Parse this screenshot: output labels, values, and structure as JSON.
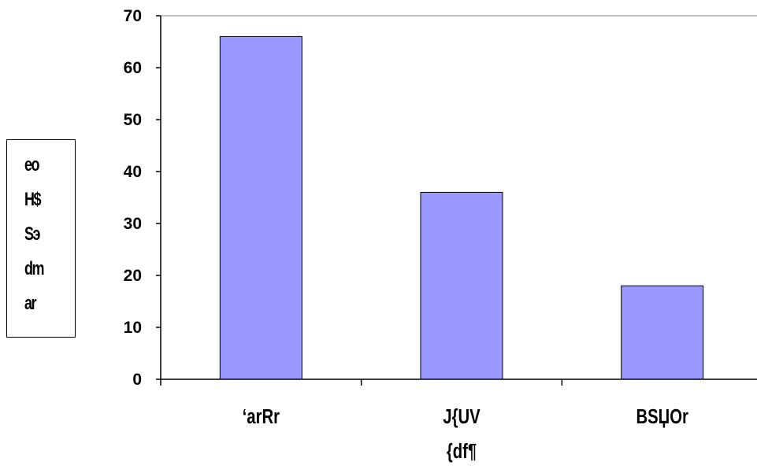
{
  "chart_data": {
    "type": "bar",
    "categories": [
      [
        "‘arRr"
      ],
      [
        "J{UV",
        "{df¶"
      ],
      [
        "BSЏOr"
      ]
    ],
    "values": [
      66,
      36,
      18
    ],
    "ylim": [
      0,
      70
    ],
    "yticks": [
      0,
      10,
      20,
      30,
      40,
      50,
      60,
      70
    ],
    "ylabel_lines": [
      "eo",
      "H$",
      "Sэ",
      "dm",
      "ar"
    ],
    "grid": false,
    "bar_color": "#9999ff",
    "bar_stroke": "#000000",
    "axis_color": "#000000"
  }
}
